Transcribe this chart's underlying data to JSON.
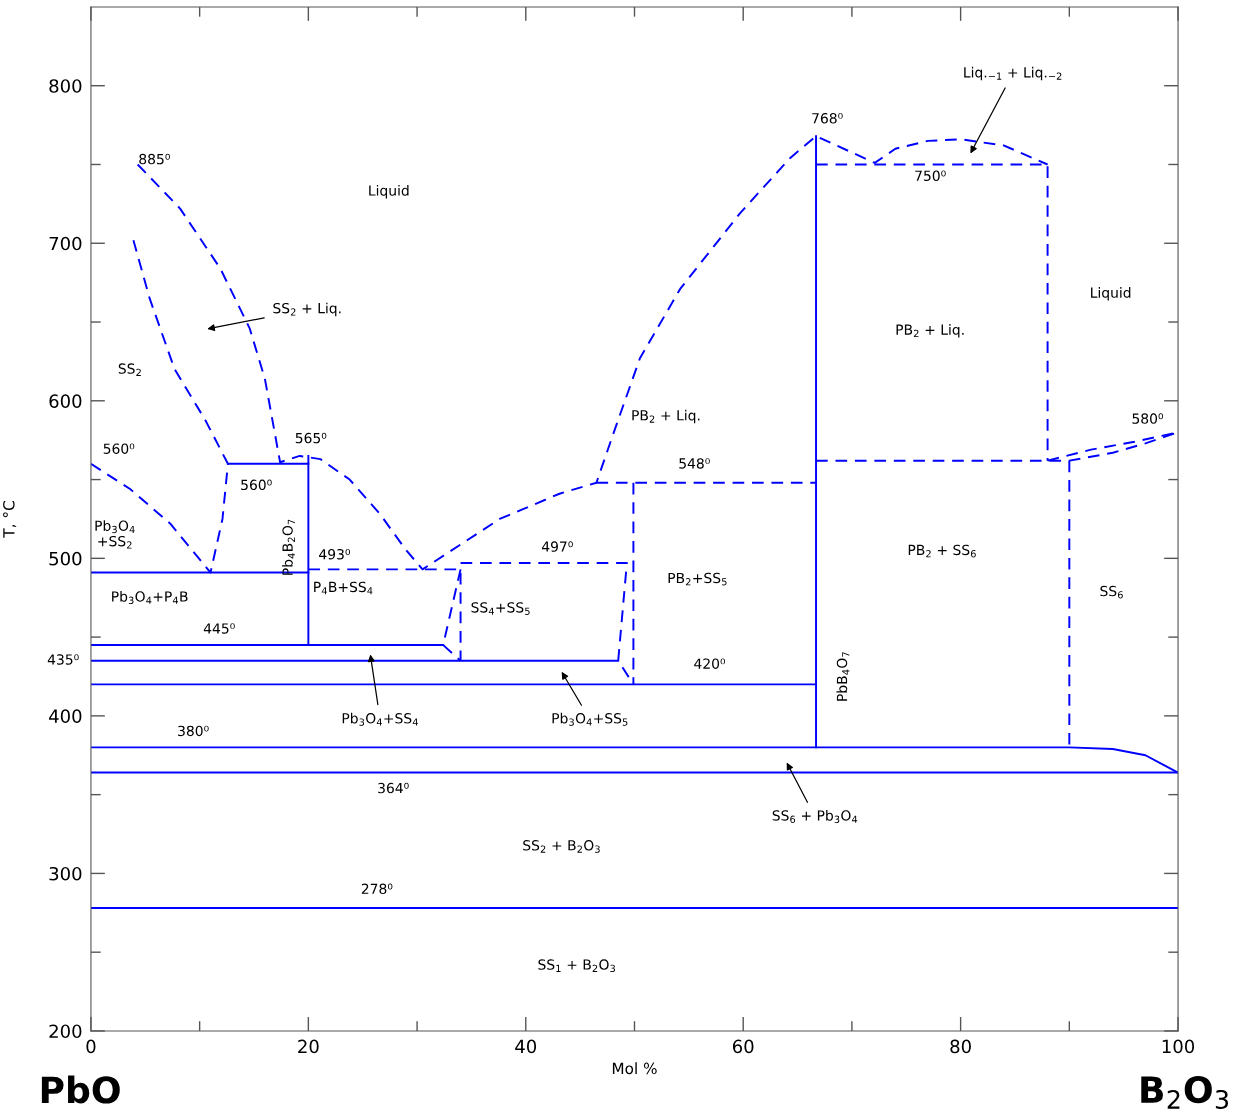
{
  "chart_data": {
    "type": "line",
    "xlabel": "Mol %",
    "ylabel": "T, °C",
    "xlim": [
      0,
      100
    ],
    "ylim": [
      200,
      850
    ],
    "xticks": [
      0,
      {
        "value": 10,
        "label": null
      },
      20,
      {
        "value": 30,
        "label": null
      },
      40,
      {
        "value": 50,
        "label": null
      },
      60,
      {
        "value": 70,
        "label": null
      },
      80,
      {
        "value": 90,
        "label": null
      },
      100
    ],
    "yticks": [
      200,
      {
        "value": 250,
        "label": null
      },
      300,
      {
        "value": 350,
        "label": null
      },
      400,
      {
        "value": 450,
        "label": null
      },
      500,
      {
        "value": 550,
        "label": null
      },
      600,
      {
        "value": 650,
        "label": null
      },
      700,
      {
        "value": 750,
        "label": null
      },
      800
    ],
    "grid": false,
    "legend": false,
    "marker": "none",
    "series": [
      {
        "x": [
          0,
          100
        ],
        "values": [
          278,
          278
        ],
        "color": "#0000ff",
        "line_style": "solid"
      },
      {
        "x": [
          0,
          100
        ],
        "values": [
          364,
          364
        ],
        "color": "#0000ff",
        "line_style": "solid"
      },
      {
        "x": [
          0,
          90,
          94,
          97,
          100
        ],
        "values": [
          380,
          380,
          379,
          375,
          364
        ],
        "color": "#0000ff",
        "line_style": "solid"
      },
      {
        "x": [
          0,
          66.7
        ],
        "values": [
          420,
          420
        ],
        "color": "#0000ff",
        "line_style": "solid"
      },
      {
        "x": [
          0,
          48.5
        ],
        "values": [
          435,
          435
        ],
        "color": "#0000ff",
        "line_style": "solid"
      },
      {
        "x": [
          0,
          32.4
        ],
        "values": [
          445,
          445
        ],
        "color": "#0000ff",
        "line_style": "solid"
      },
      {
        "x": [
          0,
          20
        ],
        "values": [
          491,
          491
        ],
        "color": "#0000ff",
        "line_style": "solid"
      },
      {
        "x": [
          20,
          20
        ],
        "values": [
          445,
          565
        ],
        "color": "#0000ff",
        "line_style": "solid"
      },
      {
        "x": [
          12.6,
          20
        ],
        "values": [
          560,
          560
        ],
        "color": "#0000ff",
        "line_style": "solid"
      },
      {
        "x": [
          66.7,
          66.7
        ],
        "values": [
          380,
          768
        ],
        "color": "#0000ff",
        "line_style": "solid"
      },
      {
        "x": [
          4.3,
          8.2,
          11.9,
          14.6,
          16,
          17.4,
          19.2,
          21.1,
          23.8,
          26.6,
          28.9,
          30.5,
          37.6,
          43.1,
          46.5,
          48.2,
          50.5,
          54.2,
          59.7,
          64.3,
          66.7,
          72.1,
          74,
          77,
          80,
          84,
          88
        ],
        "values": [
          750,
          722,
          684,
          646,
          614,
          561,
          565,
          563,
          550,
          528,
          506,
          493,
          525,
          541,
          548,
          582,
          627,
          671,
          719,
          754,
          768,
          751,
          760,
          765,
          766,
          762,
          750
        ],
        "color": "#0000ff",
        "line_style": "dashed"
      },
      {
        "x": [
          0,
          3.6,
          7.3,
          11,
          12.1,
          12.6,
          10.5,
          7.7,
          5.4,
          3.9
        ],
        "values": [
          560,
          544,
          522,
          491,
          525,
          560,
          588,
          620,
          665,
          702
        ],
        "color": "#0000ff",
        "line_style": "dashed"
      },
      {
        "x": [
          20,
          34,
          34
        ],
        "values": [
          493,
          493,
          435
        ],
        "color": "#0000ff",
        "line_style": "dashed"
      },
      {
        "x": [
          34,
          32.4,
          34
        ],
        "values": [
          493,
          445,
          435
        ],
        "color": "#0000ff",
        "line_style": "dashed"
      },
      {
        "x": [
          34,
          49.3,
          48.5,
          49.9
        ],
        "values": [
          497,
          497,
          435,
          420
        ],
        "color": "#0000ff",
        "line_style": "dashed"
      },
      {
        "x": [
          49.9,
          49.9
        ],
        "values": [
          548,
          420
        ],
        "color": "#0000ff",
        "line_style": "dashed"
      },
      {
        "x": [
          46.5,
          66.7
        ],
        "values": [
          548,
          548
        ],
        "color": "#0000ff",
        "line_style": "dashed"
      },
      {
        "x": [
          66.7,
          88,
          88
        ],
        "values": [
          750,
          750,
          562
        ],
        "color": "#0000ff",
        "line_style": "dashed"
      },
      {
        "x": [
          66.7,
          90,
          94,
          97,
          100
        ],
        "values": [
          562,
          562,
          567,
          573,
          580
        ],
        "color": "#0000ff",
        "line_style": "dashed"
      },
      {
        "x": [
          90,
          90
        ],
        "values": [
          562,
          380
        ],
        "color": "#0000ff",
        "line_style": "dashed"
      },
      {
        "x": [
          88,
          92,
          96,
          100
        ],
        "values": [
          562,
          569,
          574,
          580
        ],
        "color": "#0000ff",
        "line_style": "dashed"
      }
    ],
    "annotations": [
      "SS$_{2}$ + Liq.",
      "Liq.$_{−1}$ + Liq.$_{−2}$",
      "Pb$_{3}$O$_{4}$+SS$_{4}$",
      "Pb$_{3}$O$_{4}$+SS$_{5}$",
      "SS$_{6}$ + Pb$_{3}$O$_{4}$",
      "Liquid",
      "Liquid",
      "SS$_{2}$",
      "PB$_{2}$ + Liq.",
      "PB$_{2}$ + Liq.",
      {
        "text": "768⁰",
        "x": 66.7,
        "y": 768
      },
      {
        "text": "750⁰",
        "x": 77.2,
        "y": 750
      },
      {
        "text": "885⁰",
        "x": 4.3,
        "y": 750
      },
      {
        "text": "560⁰",
        "x": 0,
        "y": 560
      },
      {
        "text": "565⁰",
        "x": 19.2,
        "y": 565
      },
      {
        "text": "560⁰",
        "x": 15.2,
        "y": 560
      },
      "Pb$_{3}$O$_{4}$\n+SS$_{2}$",
      "Pb$_{4}$B$_{2}$O$_{7}$",
      {
        "text": "493⁰",
        "x": 22.4,
        "y": 493
      },
      {
        "text": "497⁰",
        "x": 42.9,
        "y": 497
      },
      {
        "text": "548⁰",
        "x": 55.5,
        "y": 548
      },
      {
        "text": "580⁰",
        "x": 100,
        "y": 580
      },
      "Pb$_{3}$O$_{4}$+P$_{4}$B",
      "P$_{4}$B+SS$_{4}$",
      "SS$_{4}$+SS$_{5}$",
      "PB$_{2}$+SS$_{5}$",
      "PB$_{2}$ + SS$_{6}$",
      "SS$_{6}$",
      {
        "text": "445⁰",
        "x": 11.8,
        "y": 445
      },
      {
        "text": "435⁰",
        "x": 0,
        "y": 435
      },
      {
        "text": "420⁰",
        "x": 56.9,
        "y": 420
      },
      "PbB$_{4}$O$_{7}$",
      {
        "text": "380⁰",
        "x": 9.4,
        "y": 380
      },
      {
        "text": "364⁰",
        "x": 27.8,
        "y": 364
      },
      "SS$_{2}$ + B$_{2}$O$_{3}$",
      {
        "text": "278⁰",
        "x": 26.3,
        "y": 278
      },
      "SS$_{1}$ + B$_{2}$O$_{3}$",
      "PbO",
      "B$_{2}$O$_{3}$"
    ]
  }
}
